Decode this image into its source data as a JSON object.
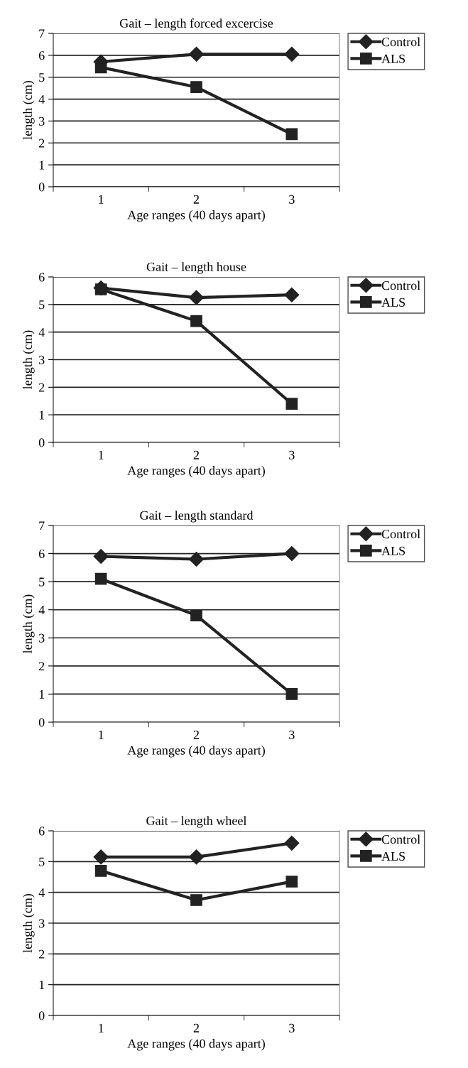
{
  "chart_data": [
    {
      "type": "line",
      "title": "Gait – length forced excercise",
      "xlabel": "Age ranges (40 days apart)",
      "ylabel": "length (cm)",
      "categories": [
        "1",
        "2",
        "3"
      ],
      "ylim": [
        0,
        7
      ],
      "yticks": [
        0,
        1,
        2,
        3,
        4,
        5,
        6,
        7
      ],
      "grid": "y",
      "legend": "right",
      "series": [
        {
          "name": "Control",
          "color": "#222222",
          "marker": "diamond",
          "values": [
            5.7,
            6.05,
            6.05
          ]
        },
        {
          "name": "ALS",
          "color": "#222222",
          "marker": "square",
          "values": [
            5.45,
            4.55,
            2.4
          ]
        }
      ]
    },
    {
      "type": "line",
      "title": "Gait – length house",
      "xlabel": "Age ranges (40 days apart)",
      "ylabel": "length (cm)",
      "categories": [
        "1",
        "2",
        "3"
      ],
      "ylim": [
        0,
        6
      ],
      "yticks": [
        0,
        1,
        2,
        3,
        4,
        5,
        6
      ],
      "grid": "y",
      "legend": "right",
      "series": [
        {
          "name": "Control",
          "color": "#222222",
          "marker": "diamond",
          "values": [
            5.6,
            5.25,
            5.35
          ]
        },
        {
          "name": "ALS",
          "color": "#222222",
          "marker": "square",
          "values": [
            5.55,
            4.4,
            1.4
          ]
        }
      ]
    },
    {
      "type": "line",
      "title": "Gait – length standard",
      "xlabel": "Age ranges (40 days apart)",
      "ylabel": "length (cm)",
      "categories": [
        "1",
        "2",
        "3"
      ],
      "ylim": [
        0,
        7
      ],
      "yticks": [
        0,
        1,
        2,
        3,
        4,
        5,
        6,
        7
      ],
      "grid": "y",
      "legend": "right",
      "series": [
        {
          "name": "Control",
          "color": "#222222",
          "marker": "diamond",
          "values": [
            5.9,
            5.8,
            6.0
          ]
        },
        {
          "name": "ALS",
          "color": "#222222",
          "marker": "square",
          "values": [
            5.1,
            3.8,
            1.0
          ]
        }
      ]
    },
    {
      "type": "line",
      "title": "Gait – length wheel",
      "xlabel": "Age ranges (40 days apart)",
      "ylabel": "length (cm)",
      "categories": [
        "1",
        "2",
        "3"
      ],
      "ylim": [
        0,
        6
      ],
      "yticks": [
        0,
        1,
        2,
        3,
        4,
        5,
        6
      ],
      "grid": "y",
      "legend": "right",
      "series": [
        {
          "name": "Control",
          "color": "#222222",
          "marker": "diamond",
          "values": [
            5.15,
            5.15,
            5.6
          ]
        },
        {
          "name": "ALS",
          "color": "#222222",
          "marker": "square",
          "values": [
            4.7,
            3.75,
            4.35
          ]
        }
      ]
    }
  ]
}
